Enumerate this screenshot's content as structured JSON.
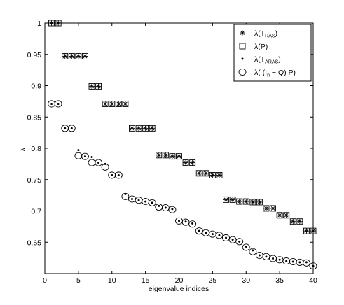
{
  "chart_data": {
    "type": "scatter",
    "xlabel": "eigenvalue indices",
    "ylabel": "λ",
    "xlim": [
      0,
      40
    ],
    "ylim": [
      0.6,
      1.0
    ],
    "xticks": [
      "0",
      "5",
      "10",
      "15",
      "20",
      "25",
      "30",
      "35",
      "40"
    ],
    "yticks": [
      "0.65",
      "0.7",
      "0.75",
      "0.8",
      "0.85",
      "0.9",
      "0.95",
      "1"
    ],
    "grid": false,
    "legend_position": "top-right",
    "legend": [
      {
        "marker": "asterisk",
        "main": "λ(T",
        "sub": "RAS",
        "tail": ")"
      },
      {
        "marker": "square",
        "main": "λ(P)",
        "sub": "",
        "tail": ""
      },
      {
        "marker": "dot",
        "main": "λ(T",
        "sub": "ARAS",
        "tail": ")"
      },
      {
        "marker": "circle",
        "main": "λ( (I",
        "sub": "n",
        "tail": " − Q) P)"
      }
    ],
    "x": [
      1,
      2,
      3,
      4,
      5,
      6,
      7,
      8,
      9,
      10,
      11,
      12,
      13,
      14,
      15,
      16,
      17,
      18,
      19,
      20,
      21,
      22,
      23,
      24,
      25,
      26,
      27,
      28,
      29,
      30,
      31,
      32,
      33,
      34,
      35,
      36,
      37,
      38,
      39,
      40
    ],
    "series": [
      {
        "marker": "asterisk",
        "values": [
          1.0,
          1.0,
          0.947,
          0.947,
          0.947,
          0.947,
          0.899,
          0.899,
          0.871,
          0.871,
          0.871,
          0.871,
          0.832,
          0.832,
          0.832,
          0.832,
          0.789,
          0.789,
          0.787,
          0.787,
          0.777,
          0.777,
          0.76,
          0.76,
          0.757,
          0.757,
          0.718,
          0.718,
          0.715,
          0.715,
          0.714,
          0.714,
          0.704,
          0.704,
          0.693,
          0.693,
          0.683,
          0.683,
          0.668,
          0.668
        ]
      },
      {
        "marker": "square",
        "values": [
          1.0,
          1.0,
          0.947,
          0.947,
          0.947,
          0.947,
          0.899,
          0.899,
          0.871,
          0.871,
          0.871,
          0.871,
          0.832,
          0.832,
          0.832,
          0.832,
          0.789,
          0.789,
          0.787,
          0.787,
          0.777,
          0.777,
          0.76,
          0.76,
          0.757,
          0.757,
          0.718,
          0.718,
          0.715,
          0.715,
          0.714,
          0.714,
          0.704,
          0.704,
          0.693,
          0.693,
          0.683,
          0.683,
          0.668,
          0.668
        ]
      },
      {
        "marker": "dot",
        "values": [
          0.871,
          0.871,
          0.832,
          0.832,
          0.797,
          0.787,
          0.786,
          0.777,
          0.775,
          0.757,
          0.757,
          0.727,
          0.719,
          0.717,
          0.715,
          0.713,
          0.708,
          0.705,
          0.703,
          0.684,
          0.683,
          0.68,
          0.668,
          0.665,
          0.663,
          0.661,
          0.657,
          0.654,
          0.651,
          0.643,
          0.637,
          0.629,
          0.627,
          0.624,
          0.622,
          0.62,
          0.619,
          0.618,
          0.618,
          0.612
        ]
      },
      {
        "marker": "circle",
        "values": [
          0.871,
          0.871,
          0.832,
          0.832,
          0.788,
          0.787,
          0.777,
          0.777,
          0.77,
          0.757,
          0.757,
          0.723,
          0.719,
          0.717,
          0.715,
          0.713,
          0.706,
          0.705,
          0.702,
          0.684,
          0.682,
          0.679,
          0.668,
          0.665,
          0.663,
          0.661,
          0.657,
          0.654,
          0.651,
          0.642,
          0.635,
          0.629,
          0.627,
          0.624,
          0.622,
          0.62,
          0.619,
          0.618,
          0.617,
          0.612
        ]
      }
    ]
  }
}
